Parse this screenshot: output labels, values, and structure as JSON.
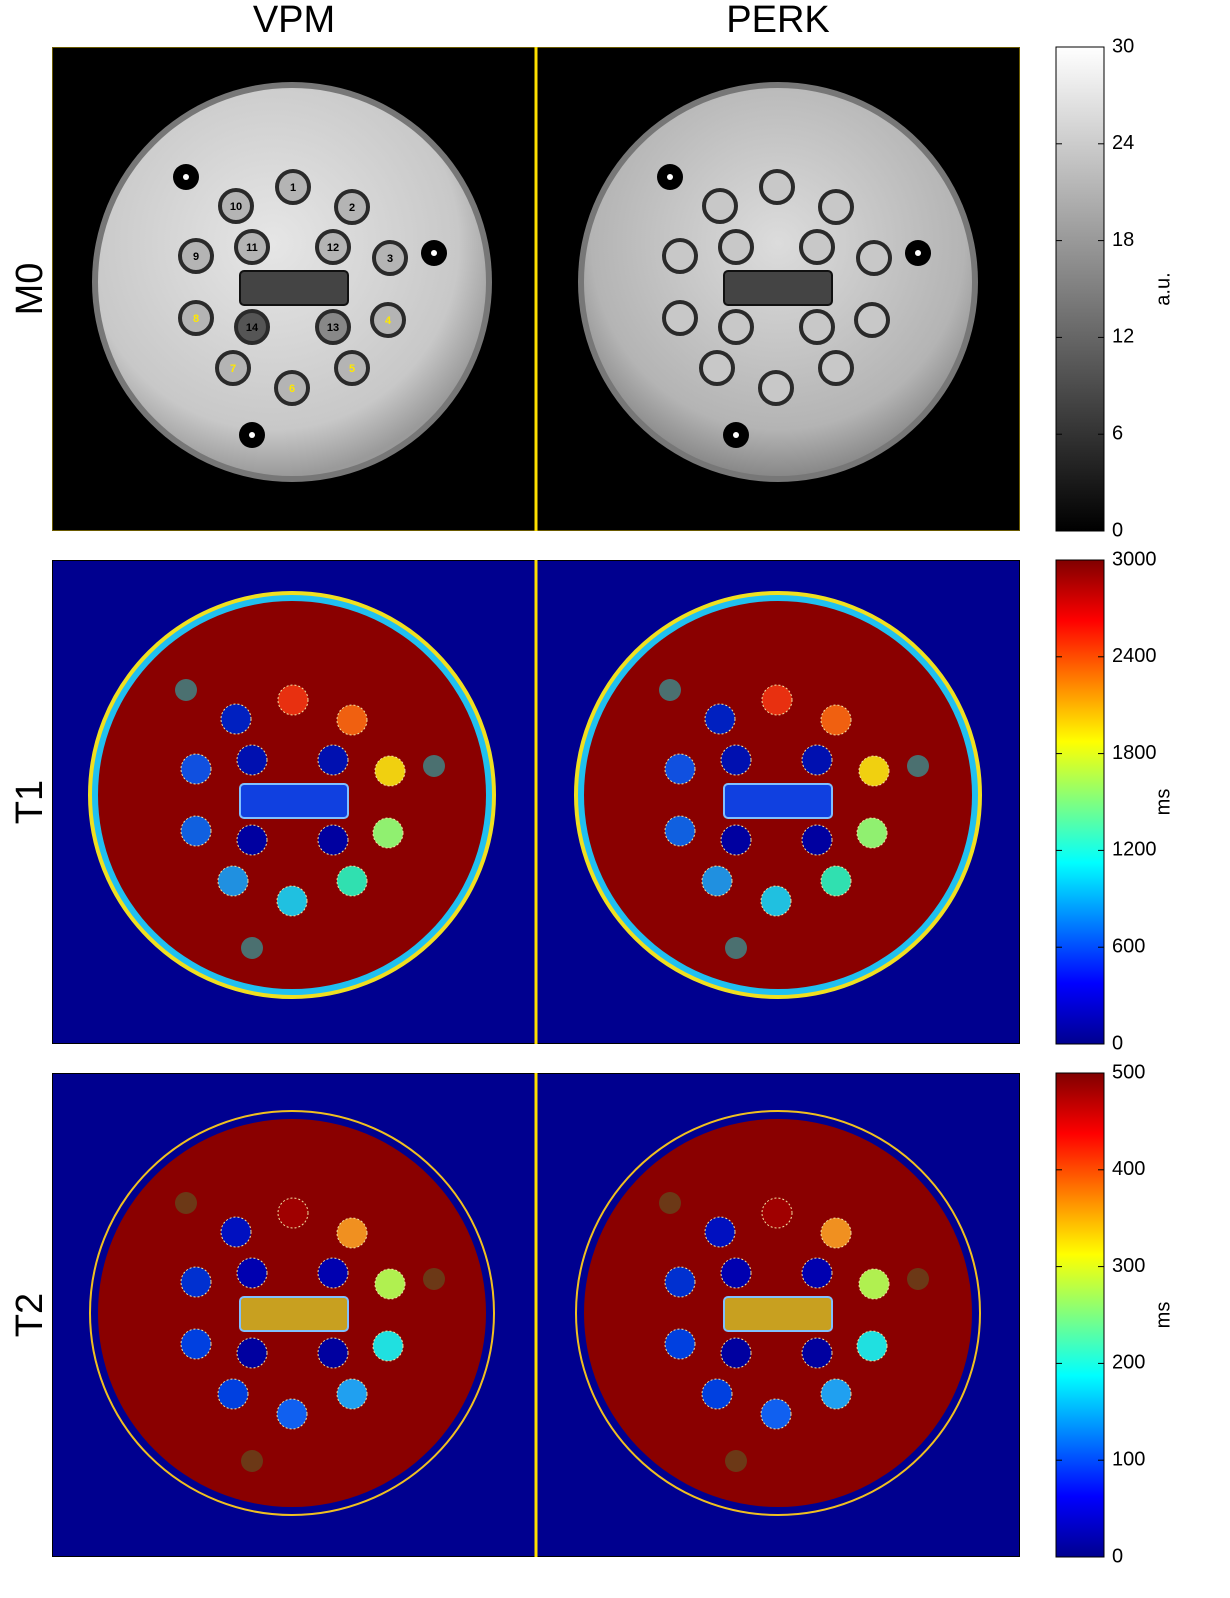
{
  "columns": [
    "VPM",
    "PERK"
  ],
  "rows": [
    {
      "label": "M0",
      "colorbar": {
        "lim": [
          0,
          30
        ],
        "ticks": [
          0,
          6,
          12,
          18,
          24,
          30
        ],
        "unit": "a.u.",
        "colormap": "gray"
      }
    },
    {
      "label": "T1",
      "colorbar": {
        "lim": [
          0,
          3000
        ],
        "ticks": [
          0,
          600,
          1200,
          1800,
          2400,
          3000
        ],
        "unit": "ms",
        "colormap": "jet"
      }
    },
    {
      "label": "T2",
      "colorbar": {
        "lim": [
          0,
          500
        ],
        "ticks": [
          0,
          100,
          200,
          300,
          400,
          500
        ],
        "unit": "ms",
        "colormap": "jet"
      }
    }
  ],
  "vial_labels": [
    "1",
    "2",
    "3",
    "4",
    "5",
    "6",
    "7",
    "8",
    "9",
    "10",
    "11",
    "12",
    "13",
    "14"
  ]
}
